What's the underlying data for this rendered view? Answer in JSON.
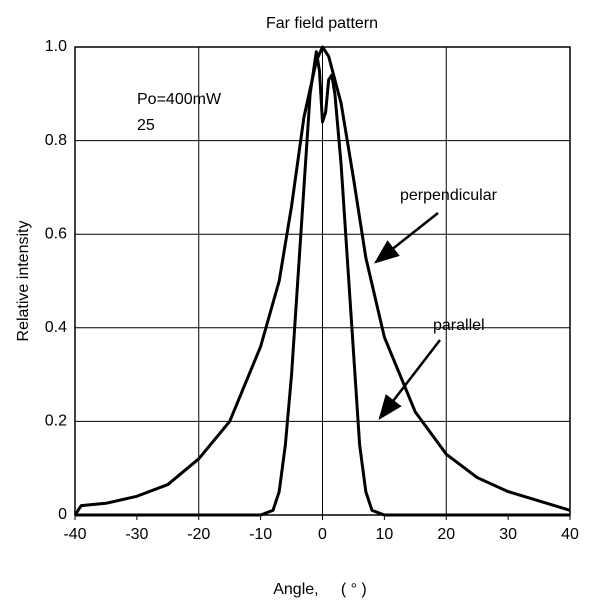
{
  "chart_data": {
    "type": "line",
    "title": "Far field pattern",
    "x_label": "Angle,     ( ° )",
    "y_label": "Relative intensity",
    "annotations": [
      "Po=400mW",
      "25",
      "perpendicular",
      "parallel"
    ],
    "xlim": [
      -40,
      40
    ],
    "ylim": [
      0,
      1.0
    ],
    "xticks": [
      -40,
      -30,
      -20,
      -10,
      0,
      10,
      20,
      30,
      40
    ],
    "yticks": [
      0,
      {
        "value": 0.2,
        "label": "0.2"
      },
      {
        "value": 0.4,
        "label": "0.4"
      },
      {
        "value": 0.6,
        "label": "0.6"
      },
      {
        "value": 0.8,
        "label": "0.8"
      },
      {
        "value": 1.0,
        "label": "1.0"
      }
    ],
    "grid_x": [
      -20,
      0,
      20
    ],
    "series": [
      {
        "name": "perpendicular",
        "color": "#000000",
        "x": [
          -40,
          -39,
          -35,
          -30,
          -25,
          -20,
          -15,
          -10,
          -7,
          -5,
          -3,
          -1,
          0,
          1,
          3,
          5,
          7,
          10,
          15,
          20,
          25,
          30,
          35,
          40
        ],
        "values": [
          0.0,
          0.02,
          0.025,
          0.04,
          0.065,
          0.12,
          0.2,
          0.36,
          0.5,
          0.66,
          0.85,
          0.97,
          1.0,
          0.98,
          0.88,
          0.72,
          0.55,
          0.38,
          0.22,
          0.13,
          0.08,
          0.05,
          0.03,
          0.01
        ]
      },
      {
        "name": "parallel",
        "color": "#000000",
        "x": [
          -40,
          -10,
          -8,
          -7,
          -6,
          -5,
          -4,
          -3,
          -2,
          -1,
          -0.5,
          0,
          0.5,
          1,
          1.5,
          2,
          3,
          4,
          5,
          6,
          7,
          8,
          10,
          40
        ],
        "values": [
          0,
          0,
          0.01,
          0.05,
          0.15,
          0.3,
          0.5,
          0.7,
          0.9,
          0.99,
          0.95,
          0.84,
          0.86,
          0.93,
          0.94,
          0.9,
          0.75,
          0.55,
          0.35,
          0.15,
          0.05,
          0.01,
          0,
          0
        ]
      }
    ]
  }
}
